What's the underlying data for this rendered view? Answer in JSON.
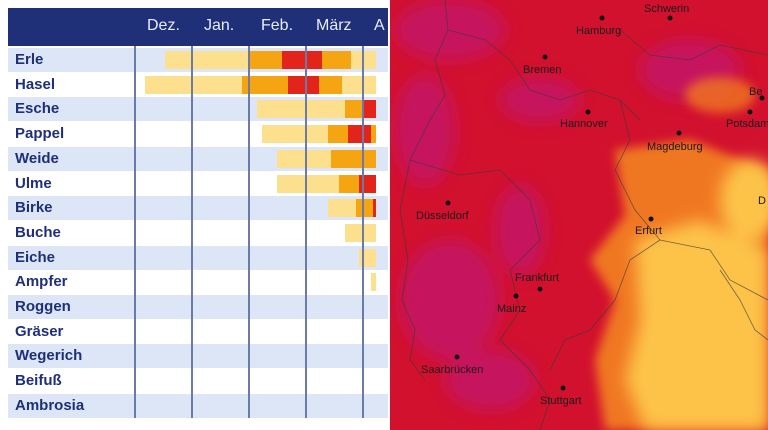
{
  "months": [
    "Dez.",
    "Jan.",
    "Feb.",
    "März",
    "A"
  ],
  "colors": {
    "header": "#1f2f78",
    "row_alt": "#dde6f6",
    "label": "#1f2f78",
    "grid": "#6c7aa6",
    "level_low": "#fde08e",
    "level_mid": "#f5a512",
    "level_high": "#e3241b"
  },
  "chart_data": {
    "type": "bar",
    "categories": [
      "Erle",
      "Hasel",
      "Esche",
      "Pappel",
      "Weide",
      "Ulme",
      "Birke",
      "Buche",
      "Eiche",
      "Ampfer",
      "Roggen",
      "Gräser",
      "Wegerich",
      "Beifuß",
      "Ambrosia"
    ],
    "x_axis_categories": [
      "Dez.",
      "Jan.",
      "Feb.",
      "März",
      "A"
    ],
    "legend": "none",
    "grid": true,
    "series": [
      {
        "plant": "Erle",
        "segments": [
          {
            "start": 0.55,
            "end": 2.0,
            "level": 1
          },
          {
            "start": 2.0,
            "end": 2.6,
            "level": 2
          },
          {
            "start": 2.6,
            "end": 3.3,
            "level": 3
          },
          {
            "start": 3.3,
            "end": 3.8,
            "level": 2
          },
          {
            "start": 3.8,
            "end": 4.25,
            "level": 1
          }
        ]
      },
      {
        "plant": "Hasel",
        "segments": [
          {
            "start": 0.2,
            "end": 1.9,
            "level": 1
          },
          {
            "start": 1.9,
            "end": 2.7,
            "level": 2
          },
          {
            "start": 2.7,
            "end": 3.25,
            "level": 3
          },
          {
            "start": 3.25,
            "end": 3.65,
            "level": 2
          },
          {
            "start": 3.65,
            "end": 4.25,
            "level": 1
          }
        ]
      },
      {
        "plant": "Esche",
        "segments": [
          {
            "start": 2.15,
            "end": 3.7,
            "level": 1
          },
          {
            "start": 3.7,
            "end": 4.0,
            "level": 2
          },
          {
            "start": 4.0,
            "end": 4.25,
            "level": 3
          }
        ]
      },
      {
        "plant": "Pappel",
        "segments": [
          {
            "start": 2.25,
            "end": 3.4,
            "level": 1
          },
          {
            "start": 3.4,
            "end": 3.75,
            "level": 2
          },
          {
            "start": 3.75,
            "end": 4.15,
            "level": 3
          },
          {
            "start": 4.15,
            "end": 4.25,
            "level": 2
          }
        ]
      },
      {
        "plant": "Weide",
        "segments": [
          {
            "start": 2.5,
            "end": 3.45,
            "level": 1
          },
          {
            "start": 3.45,
            "end": 4.25,
            "level": 2
          }
        ]
      },
      {
        "plant": "Ulme",
        "segments": [
          {
            "start": 2.5,
            "end": 3.6,
            "level": 1
          },
          {
            "start": 3.6,
            "end": 3.95,
            "level": 2
          },
          {
            "start": 3.95,
            "end": 4.25,
            "level": 3
          }
        ]
      },
      {
        "plant": "Birke",
        "segments": [
          {
            "start": 3.4,
            "end": 3.9,
            "level": 1
          },
          {
            "start": 3.9,
            "end": 4.2,
            "level": 2
          },
          {
            "start": 4.2,
            "end": 4.25,
            "level": 3
          }
        ]
      },
      {
        "plant": "Buche",
        "segments": [
          {
            "start": 3.7,
            "end": 4.25,
            "level": 1
          }
        ]
      },
      {
        "plant": "Eiche",
        "segments": [
          {
            "start": 3.95,
            "end": 4.25,
            "level": 1
          }
        ]
      },
      {
        "plant": "Ampfer",
        "segments": [
          {
            "start": 4.15,
            "end": 4.25,
            "level": 1
          }
        ]
      },
      {
        "plant": "Roggen",
        "segments": []
      },
      {
        "plant": "Gräser",
        "segments": []
      },
      {
        "plant": "Wegerich",
        "segments": []
      },
      {
        "plant": "Beifuß",
        "segments": []
      },
      {
        "plant": "Ambrosia",
        "segments": []
      }
    ]
  },
  "map": {
    "colors": {
      "high": "#d2112e",
      "very_high": "#c2186f",
      "mid": "#f07722",
      "low": "#fdc34a",
      "border": "#3a3a3a"
    },
    "cities": [
      "Schwerin",
      "Hamburg",
      "Bremen",
      "Hannover",
      "Magdeburg",
      "Potsdam",
      "Be",
      "Düsseldorf",
      "Erfurt",
      "D",
      "Frankfurt",
      "Mainz",
      "Saarbrücken",
      "Stuttgart"
    ]
  }
}
